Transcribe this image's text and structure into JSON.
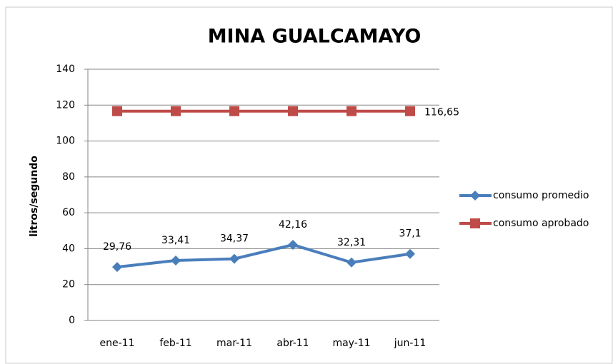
{
  "chart_data": {
    "type": "line",
    "title": "MINA GUALCAMAYO",
    "y_label": "litros/segundo",
    "categories": [
      "ene-11",
      "feb-11",
      "mar-11",
      "abr-11",
      "may-11",
      "jun-11"
    ],
    "series": [
      {
        "name": "consumo promedio",
        "color": "#4a7ebb",
        "marker": "diamond",
        "values": [
          29.76,
          33.41,
          34.37,
          42.16,
          32.31,
          37.1
        ],
        "value_labels": [
          "29,76",
          "33,41",
          "34,37",
          "42,16",
          "32,31",
          "37,1"
        ]
      },
      {
        "name": "consumo aprobado",
        "color": "#be4b48",
        "marker": "square",
        "values": [
          116.65,
          116.65,
          116.65,
          116.65,
          116.65,
          116.65
        ],
        "value_labels": [
          null,
          null,
          null,
          null,
          null,
          "116,65"
        ]
      }
    ],
    "ylim": [
      0,
      140
    ],
    "yticks": [
      0,
      20,
      40,
      60,
      80,
      100,
      120,
      140
    ],
    "grid": true,
    "legend": "right"
  }
}
